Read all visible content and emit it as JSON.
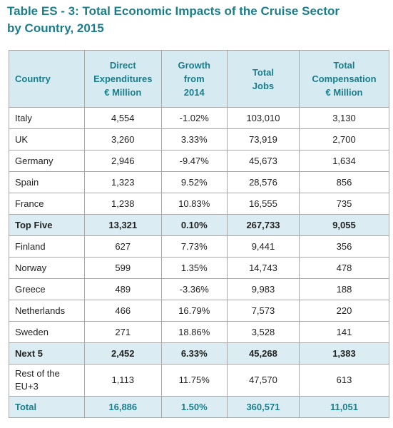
{
  "header": {
    "title": [
      "Table ES - 3: Total Economic Impacts of the Cruise Sector",
      "by Country, 2015"
    ]
  },
  "table": {
    "columns": [
      [
        "Country"
      ],
      [
        "Direct",
        "Expenditures",
        "€ Million"
      ],
      [
        "Growth",
        "from",
        "2014"
      ],
      [
        "Total",
        "Jobs"
      ],
      [
        "Total",
        "Compensation",
        "€ Million"
      ]
    ],
    "rows": [
      {
        "cells": [
          "Italy",
          "4,554",
          "-1.02%",
          "103,010",
          "3,130"
        ]
      },
      {
        "cells": [
          "UK",
          "3,260",
          "3.33%",
          "73,919",
          "2,700"
        ]
      },
      {
        "cells": [
          "Germany",
          "2,946",
          "-9.47%",
          "45,673",
          "1,634"
        ]
      },
      {
        "cells": [
          "Spain",
          "1,323",
          "9.52%",
          "28,576",
          "856"
        ]
      },
      {
        "cells": [
          "France",
          "1,238",
          "10.83%",
          "16,555",
          "735"
        ]
      },
      {
        "cells": [
          "Top Five",
          "13,321",
          "0.10%",
          "267,733",
          "9,055"
        ],
        "bold": true
      },
      {
        "cells": [
          "Finland",
          "627",
          "7.73%",
          "9,441",
          "356"
        ]
      },
      {
        "cells": [
          "Norway",
          "599",
          "1.35%",
          "14,743",
          "478"
        ]
      },
      {
        "cells": [
          "Greece",
          "489",
          "-3.36%",
          "9,983",
          "188"
        ]
      },
      {
        "cells": [
          "Netherlands",
          "466",
          "16.79%",
          "7,573",
          "220"
        ]
      },
      {
        "cells": [
          "Sweden",
          "271",
          "18.86%",
          "3,528",
          "141"
        ]
      },
      {
        "cells": [
          "Next 5",
          "2,452",
          "6.33%",
          "45,268",
          "1,383"
        ],
        "bold": true
      },
      {
        "cells": [
          [
            "Rest of the",
            "EU+3"
          ],
          "1,113",
          "11.75%",
          "47,570",
          "613"
        ]
      },
      {
        "cells": [
          "Total",
          "16,886",
          "1.50%",
          "360,571",
          "11,051"
        ],
        "bold": true,
        "total": true
      }
    ]
  }
}
